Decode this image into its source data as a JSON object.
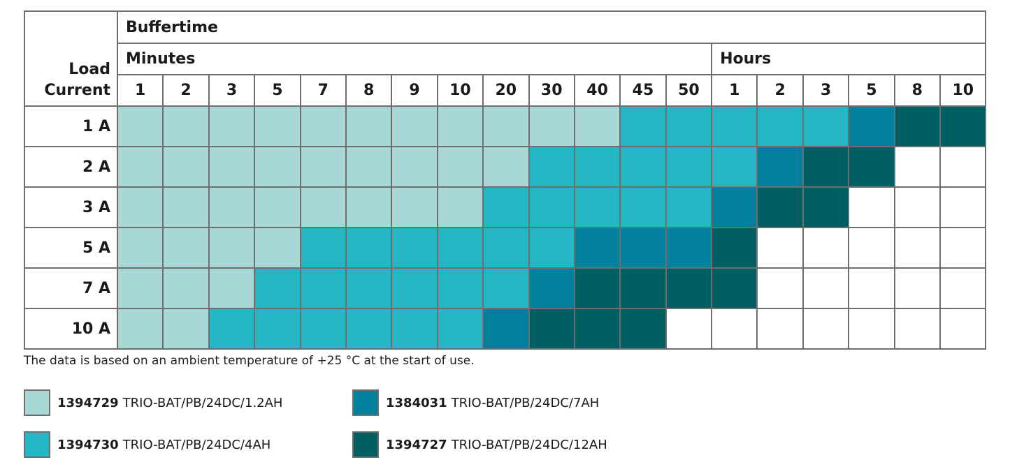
{
  "chart_data": {
    "type": "table",
    "corner_label": [
      "Load",
      "Current"
    ],
    "group_header": "Buffertime",
    "subgroups": [
      {
        "label": "Minutes",
        "columns": [
          "1",
          "2",
          "3",
          "5",
          "7",
          "8",
          "9",
          "10",
          "20",
          "30",
          "40",
          "45",
          "50"
        ]
      },
      {
        "label": "Hours",
        "columns": [
          "1",
          "2",
          "3",
          "5",
          "8",
          "10"
        ]
      }
    ],
    "rows": [
      {
        "label": "1 A",
        "cells": [
          1,
          1,
          1,
          1,
          1,
          1,
          1,
          1,
          1,
          1,
          1,
          2,
          2,
          2,
          2,
          2,
          3,
          4,
          4
        ]
      },
      {
        "label": "2 A",
        "cells": [
          1,
          1,
          1,
          1,
          1,
          1,
          1,
          1,
          1,
          2,
          2,
          2,
          2,
          2,
          3,
          4,
          4,
          0,
          0
        ]
      },
      {
        "label": "3 A",
        "cells": [
          1,
          1,
          1,
          1,
          1,
          1,
          1,
          1,
          2,
          2,
          2,
          2,
          2,
          3,
          4,
          4,
          0,
          0,
          0
        ]
      },
      {
        "label": "5 A",
        "cells": [
          1,
          1,
          1,
          1,
          2,
          2,
          2,
          2,
          2,
          2,
          3,
          3,
          3,
          4,
          0,
          0,
          0,
          0,
          0
        ]
      },
      {
        "label": "7 A",
        "cells": [
          1,
          1,
          1,
          2,
          2,
          2,
          2,
          2,
          2,
          3,
          4,
          4,
          4,
          4,
          0,
          0,
          0,
          0,
          0
        ]
      },
      {
        "label": "10 A",
        "cells": [
          1,
          1,
          2,
          2,
          2,
          2,
          2,
          2,
          3,
          4,
          4,
          4,
          0,
          0,
          0,
          0,
          0,
          0,
          0
        ]
      }
    ],
    "note": "The data is based on an ambient temperature of +25 °C at the start of use.",
    "legend": [
      {
        "level": 1,
        "code": "1394729",
        "name": "TRIO-BAT/PB/24DC/1.2AH",
        "color": "#a7d8d6"
      },
      {
        "level": 3,
        "code": "1384031",
        "name": "TRIO-BAT/PB/24DC/7AH",
        "color": "#00809a"
      },
      {
        "level": 2,
        "code": "1394730",
        "name": "TRIO-BAT/PB/24DC/4AH",
        "color": "#26b7c6"
      },
      {
        "level": 4,
        "code": "1394727",
        "name": "TRIO-BAT/PB/24DC/12AH",
        "color": "#005f63"
      }
    ]
  }
}
